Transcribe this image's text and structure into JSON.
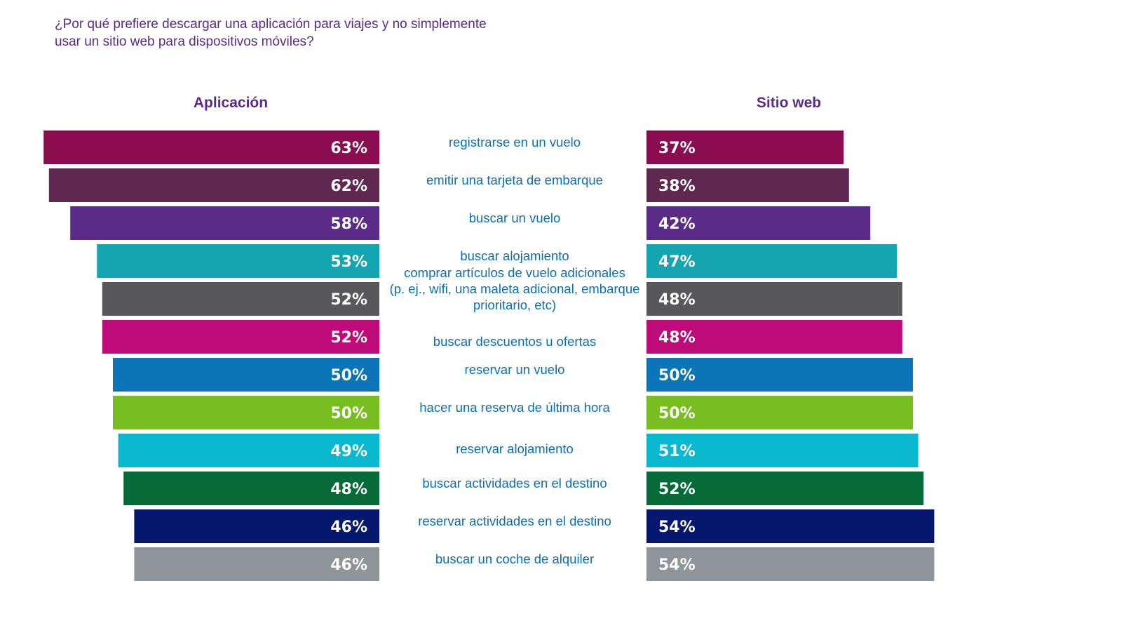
{
  "question": "¿Por qué prefiere descargar una aplicación para viajes y no simplemente usar un sitio web para dispositivos móviles?",
  "chart_data": {
    "type": "bar",
    "orientation": "horizontal-diverging",
    "series": [
      {
        "name": "Aplicación",
        "values": [
          63,
          62,
          58,
          53,
          52,
          52,
          50,
          50,
          49,
          48,
          46,
          46
        ],
        "labels": [
          "63%",
          "62%",
          "58%",
          "53%",
          "52%",
          "52%",
          "50%",
          "50%",
          "49%",
          "48%",
          "46%",
          "46%"
        ]
      },
      {
        "name": "Sitio web",
        "values": [
          37,
          38,
          42,
          47,
          48,
          48,
          50,
          50,
          51,
          52,
          54,
          54
        ],
        "labels": [
          "37%",
          "38%",
          "42%",
          "47%",
          "48%",
          "48%",
          "50%",
          "50%",
          "51%",
          "52%",
          "54%",
          "54%"
        ]
      }
    ],
    "categories": [
      [
        "registrarse en un vuelo"
      ],
      [
        "emitir una tarjeta de embarque"
      ],
      [
        "buscar un vuelo"
      ],
      [
        "buscar alojamiento"
      ],
      [
        "comprar artículos de vuelo adicionales",
        "(p. ej., wifi, una maleta adicional, embarque",
        "prioritario, etc)"
      ],
      [
        "buscar descuentos u ofertas"
      ],
      [
        "reservar un vuelo"
      ],
      [
        "hacer una reserva de última hora"
      ],
      [
        "reservar alojamiento"
      ],
      [
        "buscar actividades en el destino"
      ],
      [
        "reservar actividades en el destino"
      ],
      [
        "buscar un coche de alquiler"
      ]
    ],
    "colors": [
      "#8a0d52",
      "#5e2850",
      "#5b2c87",
      "#14a5b1",
      "#58585a",
      "#bd0b79",
      "#0b75b8",
      "#78be21",
      "#0ab9d0",
      "#066b38",
      "#06176e",
      "#8e9598"
    ],
    "unit": "%",
    "grid": false,
    "legend": "column headers above each side"
  }
}
